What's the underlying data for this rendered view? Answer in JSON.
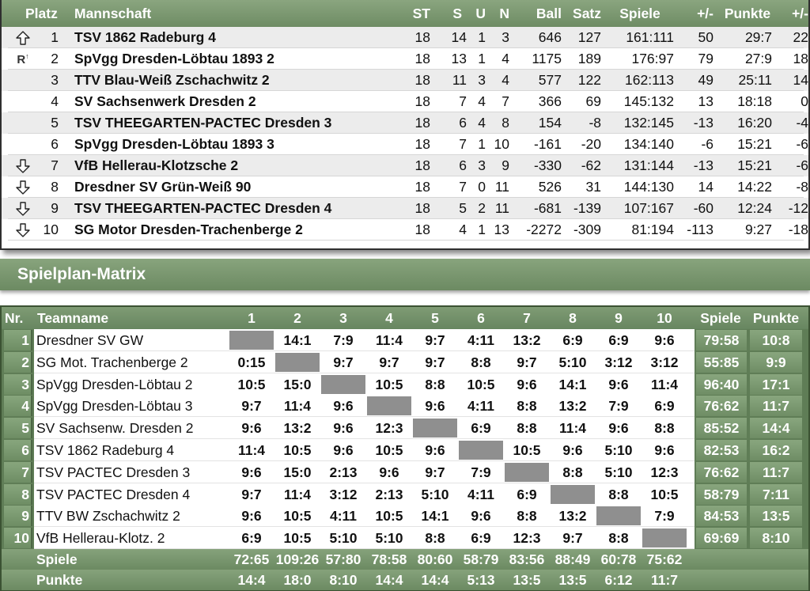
{
  "standings": {
    "headers": {
      "platz": "Platz",
      "mannschaft": "Mannschaft",
      "st": "ST",
      "s": "S",
      "u": "U",
      "n": "N",
      "ball": "Ball",
      "satz": "Satz",
      "spiele": "Spiele",
      "diff1": "+/-",
      "punkte": "Punkte",
      "diff2": "+/-"
    },
    "rows": [
      {
        "marker": "up",
        "platz": "1",
        "team": "TSV 1862 Radeburg 4",
        "st": "18",
        "s": "14",
        "u": "1",
        "n": "3",
        "ball": "646",
        "satz": "127",
        "spiele": "161:111",
        "diff1": "50",
        "punkte": "29:7",
        "diff2": "22"
      },
      {
        "marker": "R",
        "platz": "2",
        "team": "SpVgg Dresden-Löbtau 1893 2",
        "st": "18",
        "s": "13",
        "u": "1",
        "n": "4",
        "ball": "1175",
        "satz": "189",
        "spiele": "176:97",
        "diff1": "79",
        "punkte": "27:9",
        "diff2": "18"
      },
      {
        "marker": "",
        "platz": "3",
        "team": "TTV Blau-Weiß Zschachwitz 2",
        "st": "18",
        "s": "11",
        "u": "3",
        "n": "4",
        "ball": "577",
        "satz": "122",
        "spiele": "162:113",
        "diff1": "49",
        "punkte": "25:11",
        "diff2": "14"
      },
      {
        "marker": "",
        "platz": "4",
        "team": "SV Sachsenwerk Dresden 2",
        "st": "18",
        "s": "7",
        "u": "4",
        "n": "7",
        "ball": "366",
        "satz": "69",
        "spiele": "145:132",
        "diff1": "13",
        "punkte": "18:18",
        "diff2": "0"
      },
      {
        "marker": "",
        "platz": "5",
        "team": "TSV THEEGARTEN-PACTEC Dresden 3",
        "st": "18",
        "s": "6",
        "u": "4",
        "n": "8",
        "ball": "154",
        "satz": "-8",
        "spiele": "132:145",
        "diff1": "-13",
        "punkte": "16:20",
        "diff2": "-4"
      },
      {
        "marker": "",
        "platz": "6",
        "team": "SpVgg Dresden-Löbtau 1893 3",
        "st": "18",
        "s": "7",
        "u": "1",
        "n": "10",
        "ball": "-161",
        "satz": "-20",
        "spiele": "134:140",
        "diff1": "-6",
        "punkte": "15:21",
        "diff2": "-6"
      },
      {
        "marker": "down",
        "platz": "7",
        "team": "VfB Hellerau-Klotzsche 2",
        "st": "18",
        "s": "6",
        "u": "3",
        "n": "9",
        "ball": "-330",
        "satz": "-62",
        "spiele": "131:144",
        "diff1": "-13",
        "punkte": "15:21",
        "diff2": "-6"
      },
      {
        "marker": "down",
        "platz": "8",
        "team": "Dresdner SV Grün-Weiß 90",
        "st": "18",
        "s": "7",
        "u": "0",
        "n": "11",
        "ball": "526",
        "satz": "31",
        "spiele": "144:130",
        "diff1": "14",
        "punkte": "14:22",
        "diff2": "-8"
      },
      {
        "marker": "down",
        "platz": "9",
        "team": "TSV THEEGARTEN-PACTEC Dresden 4",
        "st": "18",
        "s": "5",
        "u": "2",
        "n": "11",
        "ball": "-681",
        "satz": "-139",
        "spiele": "107:167",
        "diff1": "-60",
        "punkte": "12:24",
        "diff2": "-12"
      },
      {
        "marker": "down",
        "platz": "10",
        "team": "SG Motor Dresden-Trachenberge 2",
        "st": "18",
        "s": "4",
        "u": "1",
        "n": "13",
        "ball": "-2272",
        "satz": "-309",
        "spiele": "81:194",
        "diff1": "-113",
        "punkte": "9:27",
        "diff2": "-18"
      }
    ]
  },
  "matrix": {
    "title": "Spielplan-Matrix",
    "headers": {
      "nr": "Nr.",
      "team": "Teamname",
      "spiele": "Spiele",
      "punkte": "Punkte"
    },
    "columns": [
      "1",
      "2",
      "3",
      "4",
      "5",
      "6",
      "7",
      "8",
      "9",
      "10"
    ],
    "rows": [
      {
        "nr": "1",
        "team": "Dresdner SV GW",
        "cells": [
          "",
          "14:1",
          "7:9",
          "11:4",
          "9:7",
          "4:11",
          "13:2",
          "6:9",
          "6:9",
          "9:6"
        ],
        "spiele": "79:58",
        "punkte": "10:8"
      },
      {
        "nr": "2",
        "team": "SG Mot. Trachenberge 2",
        "cells": [
          "0:15",
          "",
          "9:7",
          "9:7",
          "9:7",
          "8:8",
          "9:7",
          "5:10",
          "3:12",
          "3:12"
        ],
        "spiele": "55:85",
        "punkte": "9:9"
      },
      {
        "nr": "3",
        "team": "SpVgg Dresden-Löbtau 2",
        "cells": [
          "10:5",
          "15:0",
          "",
          "10:5",
          "8:8",
          "10:5",
          "9:6",
          "14:1",
          "9:6",
          "11:4"
        ],
        "spiele": "96:40",
        "punkte": "17:1"
      },
      {
        "nr": "4",
        "team": "SpVgg Dresden-Löbtau 3",
        "cells": [
          "9:7",
          "11:4",
          "9:6",
          "",
          "9:6",
          "4:11",
          "8:8",
          "13:2",
          "7:9",
          "6:9"
        ],
        "spiele": "76:62",
        "punkte": "11:7"
      },
      {
        "nr": "5",
        "team": "SV Sachsenw. Dresden 2",
        "cells": [
          "9:6",
          "13:2",
          "9:6",
          "12:3",
          "",
          "6:9",
          "8:8",
          "11:4",
          "9:6",
          "8:8"
        ],
        "spiele": "85:52",
        "punkte": "14:4"
      },
      {
        "nr": "6",
        "team": "TSV 1862 Radeburg 4",
        "cells": [
          "11:4",
          "10:5",
          "9:6",
          "10:5",
          "9:6",
          "",
          "10:5",
          "9:6",
          "5:10",
          "9:6"
        ],
        "spiele": "82:53",
        "punkte": "16:2"
      },
      {
        "nr": "7",
        "team": "TSV PACTEC Dresden 3",
        "cells": [
          "9:6",
          "15:0",
          "2:13",
          "9:6",
          "9:7",
          "7:9",
          "",
          "8:8",
          "5:10",
          "12:3"
        ],
        "spiele": "76:62",
        "punkte": "11:7"
      },
      {
        "nr": "8",
        "team": "TSV PACTEC Dresden 4",
        "cells": [
          "9:7",
          "11:4",
          "3:12",
          "2:13",
          "5:10",
          "4:11",
          "6:9",
          "",
          "8:8",
          "10:5"
        ],
        "spiele": "58:79",
        "punkte": "7:11"
      },
      {
        "nr": "9",
        "team": "TTV BW Zschachwitz 2",
        "cells": [
          "9:6",
          "10:5",
          "4:11",
          "10:5",
          "14:1",
          "9:6",
          "8:8",
          "13:2",
          "",
          "7:9"
        ],
        "spiele": "84:53",
        "punkte": "13:5"
      },
      {
        "nr": "10",
        "team": "VfB Hellerau-Klotz. 2",
        "cells": [
          "6:9",
          "10:5",
          "5:10",
          "5:10",
          "8:8",
          "6:9",
          "12:3",
          "9:7",
          "8:8",
          ""
        ],
        "spiele": "69:69",
        "punkte": "8:10"
      }
    ],
    "footer": {
      "spiele_label": "Spiele",
      "spiele": [
        "72:65",
        "109:26",
        "57:80",
        "78:58",
        "80:60",
        "58:79",
        "83:56",
        "88:49",
        "60:78",
        "75:62"
      ],
      "punkte_label": "Punkte",
      "punkte": [
        "14:4",
        "18:0",
        "8:10",
        "14:4",
        "14:4",
        "5:13",
        "13:5",
        "13:5",
        "6:12",
        "11:7"
      ]
    }
  }
}
